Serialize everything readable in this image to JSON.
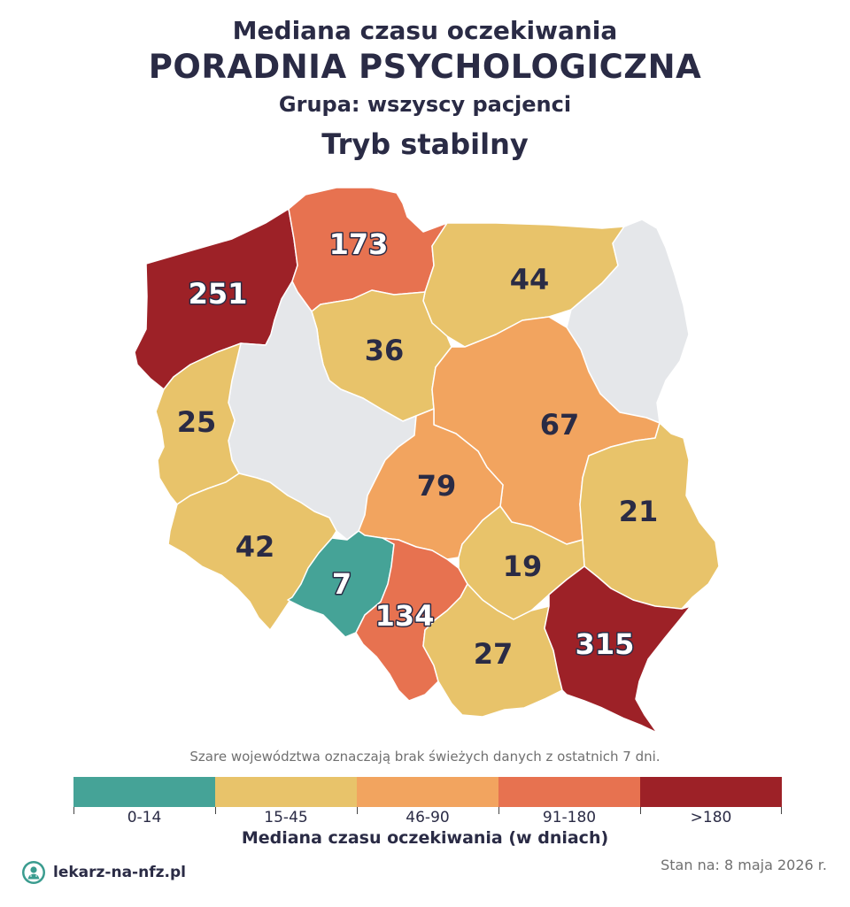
{
  "header": {
    "line1": "Mediana czasu oczekiwania",
    "line2": "PORADNIA PSYCHOLOGICZNA",
    "line3": "Grupa: wszyscy pacjenci",
    "line4": "Tryb stabilny"
  },
  "colors": {
    "no_data": "#e5e7ea",
    "range_0_14": "#45a397",
    "range_15_45": "#e8c36a",
    "range_46_90": "#f2a45f",
    "range_91_180": "#e77250",
    "range_180_plus": "#9d2127",
    "text_dark": "#2a2b45",
    "text_light": "#ffffff"
  },
  "regions": [
    {
      "id": "zachodniopomorskie",
      "value": "251",
      "bucket": "range_180_plus"
    },
    {
      "id": "pomorskie",
      "value": "173",
      "bucket": "range_91_180"
    },
    {
      "id": "warminsko-mazurskie",
      "value": "44",
      "bucket": "range_15_45"
    },
    {
      "id": "podlaskie",
      "value": "",
      "bucket": "no_data"
    },
    {
      "id": "kujawsko-pomorskie",
      "value": "36",
      "bucket": "range_15_45"
    },
    {
      "id": "wielkopolskie",
      "value": "",
      "bucket": "no_data"
    },
    {
      "id": "lubuskie",
      "value": "25",
      "bucket": "range_15_45"
    },
    {
      "id": "mazowieckie",
      "value": "67",
      "bucket": "range_46_90"
    },
    {
      "id": "lodzkie",
      "value": "79",
      "bucket": "range_46_90"
    },
    {
      "id": "lubelskie",
      "value": "21",
      "bucket": "range_15_45"
    },
    {
      "id": "dolnoslaskie",
      "value": "42",
      "bucket": "range_15_45"
    },
    {
      "id": "opolskie",
      "value": "7",
      "bucket": "range_0_14"
    },
    {
      "id": "slaskie",
      "value": "134",
      "bucket": "range_91_180"
    },
    {
      "id": "swietokrzyskie",
      "value": "19",
      "bucket": "range_15_45"
    },
    {
      "id": "malopolskie",
      "value": "27",
      "bucket": "range_15_45"
    },
    {
      "id": "podkarpackie",
      "value": "315",
      "bucket": "range_180_plus"
    }
  ],
  "note": "Szare województwa oznaczają brak świeżych danych z ostatnich 7 dni.",
  "legend": {
    "title": "Mediana czasu oczekiwania (w dniach)",
    "items": [
      {
        "label": "0-14",
        "color": "#45a397"
      },
      {
        "label": "15-45",
        "color": "#e8c36a"
      },
      {
        "label": "46-90",
        "color": "#f2a45f"
      },
      {
        "label": "91-180",
        "color": "#e77250"
      },
      {
        "label": ">180",
        "color": "#9d2127"
      }
    ]
  },
  "footer": {
    "brand": "lekarz-na-nfz.pl",
    "brand_icon": "doctor-icon",
    "date": "Stan na: 8 maja 2026 r."
  }
}
